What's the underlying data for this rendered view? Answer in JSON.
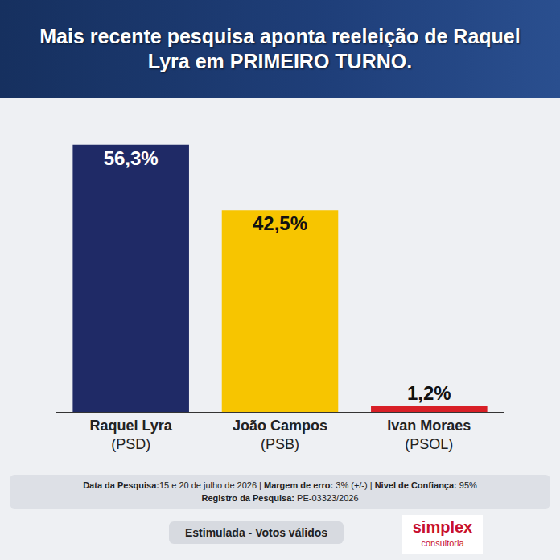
{
  "chart_data": {
    "type": "bar",
    "title": "Mais recente pesquisa aponta reeleição de Raquel Lyra em PRIMEIRO TURNO.",
    "categories": [
      "Raquel Lyra (PSD)",
      "João Campos (PSB)",
      "Ivan Moraes (PSOL)"
    ],
    "values": [
      56.3,
      42.5,
      1.2
    ],
    "value_labels": [
      "56,3%",
      "42,5%",
      "1,2%"
    ],
    "colors": [
      "#1f2a66",
      "#f7c500",
      "#d81f26"
    ],
    "data_labels": true,
    "ylim": [
      0,
      60
    ],
    "tick_labels": "x",
    "grid": false,
    "annotations": [
      "Data da Pesquisa:15 e 20 de julho de 2026 | Margem de erro: 3% (+/-) | Nivel de Confiança: 95%",
      "Registro da Pesquisa: PE-03323/2026",
      "Estimulada - Votos válidos"
    ],
    "source": "simplex consultoria"
  }
}
